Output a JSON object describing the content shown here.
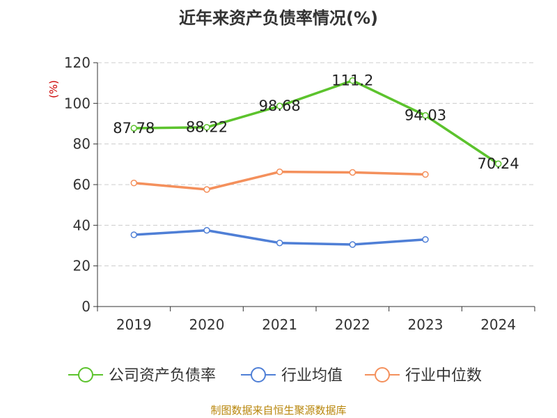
{
  "chart_data": {
    "type": "line",
    "title": "近年来资产负债率情况(%)",
    "ylabel": "(%)",
    "xlabel": "",
    "categories": [
      "2019",
      "2020",
      "2021",
      "2022",
      "2023",
      "2024"
    ],
    "ylim": [
      0,
      120
    ],
    "yticks": [
      0,
      20,
      40,
      60,
      80,
      100,
      120
    ],
    "grid": true,
    "legend_position": "bottom",
    "series": [
      {
        "name": "公司资产负债率",
        "color": "#5cc32d",
        "values": [
          87.78,
          88.22,
          98.68,
          111.2,
          94.03,
          70.24
        ],
        "labels": [
          "87.78",
          "88.22",
          "98.68",
          "111.2",
          "94.03",
          "70.24"
        ]
      },
      {
        "name": "行业均值",
        "color": "#4f7fd6",
        "values": [
          35.3,
          37.5,
          31.3,
          30.5,
          33.0,
          null
        ]
      },
      {
        "name": "行业中位数",
        "color": "#f4905c",
        "values": [
          60.8,
          57.6,
          66.3,
          66.0,
          65.0,
          null
        ]
      }
    ]
  },
  "source": "制图数据来自恒生聚源数据库"
}
